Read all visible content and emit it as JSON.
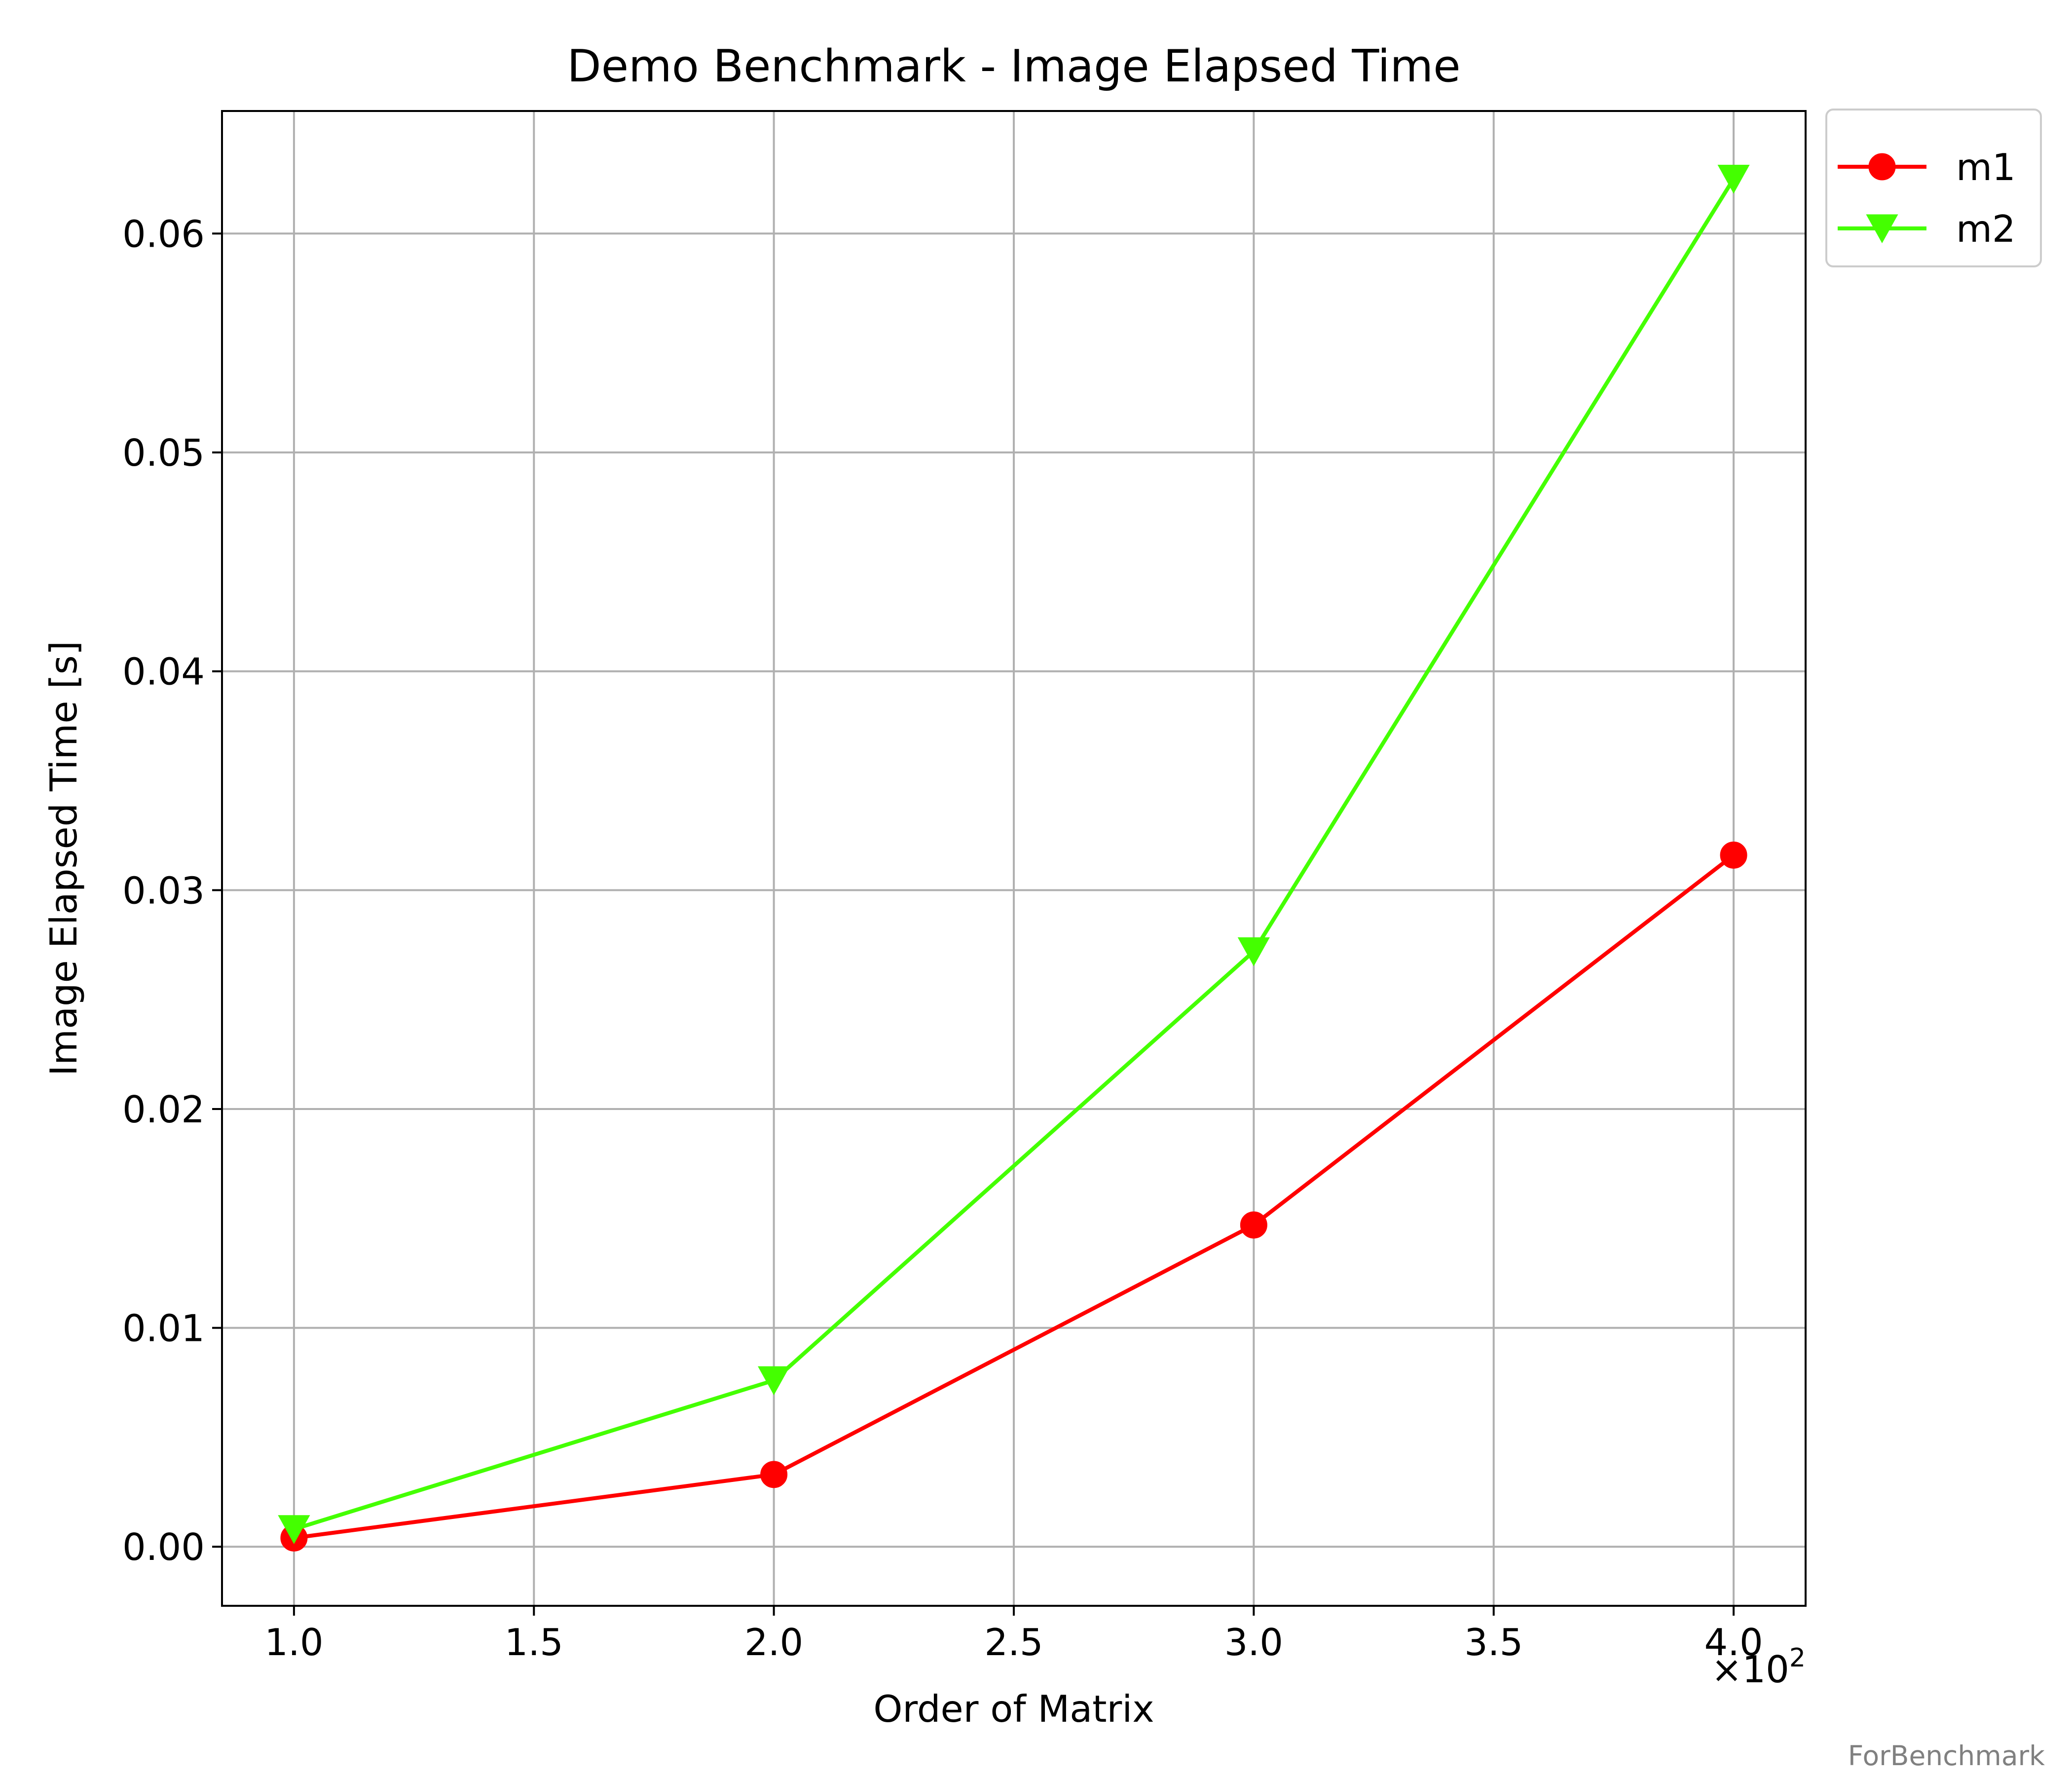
{
  "chart_data": {
    "type": "line",
    "title": "Demo Benchmark - Image Elapsed Time",
    "xlabel": "Order of Matrix",
    "ylabel": "Image Elapsed Time [s]",
    "x_offset_label": {
      "base": "×10",
      "exponent": "2"
    },
    "x": [
      1.0,
      2.0,
      3.0,
      4.0
    ],
    "xlim": [
      0.85,
      4.15
    ],
    "ylim": [
      -0.0027,
      0.0656
    ],
    "xticks": [
      1.0,
      1.5,
      2.0,
      2.5,
      3.0,
      3.5,
      4.0
    ],
    "xtick_labels": [
      "1.0",
      "1.5",
      "2.0",
      "2.5",
      "3.0",
      "3.5",
      "4.0"
    ],
    "yticks": [
      0.0,
      0.01,
      0.02,
      0.03,
      0.04,
      0.05,
      0.06
    ],
    "ytick_labels": [
      "0.00",
      "0.01",
      "0.02",
      "0.03",
      "0.04",
      "0.05",
      "0.06"
    ],
    "grid": true,
    "legend_position": "outside-top-right",
    "series": [
      {
        "name": "m1",
        "color": "#ff0000",
        "marker": "circle",
        "values": [
          0.0004,
          0.0033,
          0.0147,
          0.0316
        ]
      },
      {
        "name": "m2",
        "color": "#44ff00",
        "marker": "triangle-down",
        "values": [
          0.0008,
          0.0076,
          0.0272,
          0.0625
        ]
      }
    ]
  },
  "footer_text": "ForBenchmark"
}
